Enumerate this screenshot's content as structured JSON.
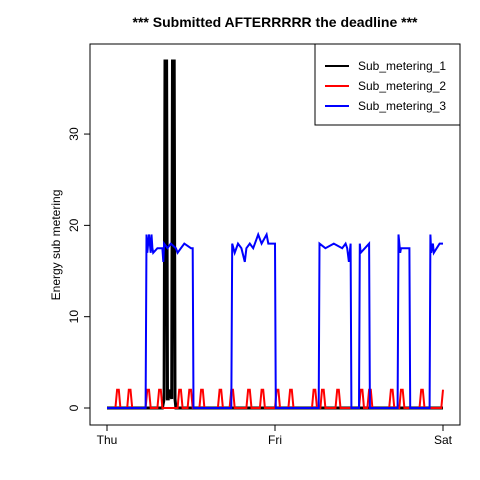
{
  "chart_data": {
    "type": "line",
    "title": "*** Submitted AFTERRRRR the deadline ***",
    "xlabel": "",
    "ylabel": "Energy sub metering",
    "x_range": [
      0,
      2
    ],
    "ylim": [
      -1.5,
      39.8
    ],
    "x_ticks": [
      {
        "value": 0,
        "label": "Thu"
      },
      {
        "value": 1,
        "label": "Fri"
      },
      {
        "value": 2,
        "label": "Sat"
      }
    ],
    "y_ticks": [
      0,
      10,
      20,
      30
    ],
    "legend": {
      "position": "top-right"
    },
    "series": [
      {
        "name": "Sub_metering_1",
        "color": "#000000",
        "x": [
          0,
          0.33,
          0.34,
          0.345,
          0.35,
          0.355,
          0.36,
          0.365,
          0.37,
          0.385,
          0.39,
          0.395,
          0.4,
          0.405,
          0.41,
          0.42,
          2
        ],
        "y": [
          0,
          0,
          1,
          38,
          38,
          38,
          1,
          1,
          2,
          1,
          38,
          38,
          38,
          1,
          0,
          0,
          0
        ]
      },
      {
        "name": "Sub_metering_2",
        "color": "#ff0000",
        "x": [
          0,
          0.05,
          0.06,
          0.07,
          0.08,
          0.12,
          0.13,
          0.14,
          0.15,
          0.23,
          0.24,
          0.25,
          0.26,
          0.3,
          0.31,
          0.32,
          0.33,
          0.42,
          0.43,
          0.44,
          0.45,
          0.48,
          0.49,
          0.5,
          0.51,
          0.55,
          0.56,
          0.57,
          0.58,
          0.66,
          0.67,
          0.68,
          0.69,
          0.73,
          0.74,
          0.75,
          0.76,
          0.83,
          0.84,
          0.85,
          0.86,
          0.91,
          0.92,
          0.93,
          0.94,
          1.0,
          1.01,
          1.02,
          1.03,
          1.08,
          1.09,
          1.1,
          1.11,
          1.22,
          1.23,
          1.24,
          1.25,
          1.27,
          1.28,
          1.29,
          1.3,
          1.36,
          1.37,
          1.38,
          1.39,
          1.5,
          1.51,
          1.52,
          1.53,
          1.55,
          1.56,
          1.57,
          1.58,
          1.68,
          1.69,
          1.7,
          1.71,
          1.74,
          1.75,
          1.76,
          1.77,
          1.86,
          1.87,
          1.88,
          1.89,
          1.99,
          2
        ],
        "y": [
          0,
          0,
          2,
          2,
          0,
          0,
          2,
          2,
          0,
          0,
          2,
          2,
          0,
          0,
          2,
          2,
          0,
          0,
          2,
          2,
          0,
          0,
          2,
          2,
          0,
          0,
          2,
          2,
          0,
          0,
          2,
          2,
          0,
          0,
          2,
          2,
          0,
          0,
          2,
          2,
          0,
          0,
          2,
          2,
          0,
          0,
          2,
          2,
          0,
          0,
          2,
          2,
          0,
          0,
          2,
          2,
          0,
          0,
          2,
          2,
          0,
          0,
          2,
          2,
          0,
          0,
          2,
          2,
          0,
          0,
          2,
          2,
          0,
          0,
          2,
          2,
          0,
          0,
          2,
          2,
          0,
          0,
          2,
          2,
          0,
          0,
          2
        ]
      },
      {
        "name": "Sub_metering_3",
        "color": "#0000ff",
        "x": [
          0,
          0.23,
          0.235,
          0.24,
          0.25,
          0.26,
          0.265,
          0.27,
          0.275,
          0.3,
          0.33,
          0.335,
          0.34,
          0.36,
          0.38,
          0.41,
          0.42,
          0.44,
          0.46,
          0.5,
          0.51,
          0.515,
          0.74,
          0.745,
          0.76,
          0.78,
          0.8,
          0.82,
          0.83,
          0.85,
          0.87,
          0.9,
          0.92,
          0.95,
          0.96,
          1.0,
          1.005,
          1.26,
          1.265,
          1.3,
          1.35,
          1.4,
          1.42,
          1.43,
          1.44,
          1.45,
          1.455,
          1.5,
          1.505,
          1.51,
          1.56,
          1.565,
          1.73,
          1.735,
          1.745,
          1.75,
          1.8,
          1.805,
          1.92,
          1.925,
          1.93,
          1.94,
          1.945,
          1.98,
          2
        ],
        "y": [
          0,
          0,
          19,
          17,
          19,
          17,
          19,
          17.5,
          17,
          17.5,
          17.5,
          16,
          18,
          17.5,
          18,
          17.5,
          17,
          17.5,
          18,
          17.5,
          17.5,
          0,
          0,
          18,
          17,
          18,
          17.5,
          16,
          17.5,
          18,
          17.5,
          19,
          18,
          19,
          18,
          18,
          0,
          0,
          18,
          17.5,
          18,
          17.5,
          18,
          17.5,
          16,
          18,
          0,
          0,
          18,
          17,
          18,
          0,
          0,
          19,
          17,
          17.5,
          17.5,
          0,
          0,
          19,
          17,
          18,
          17,
          18,
          18
        ]
      }
    ]
  }
}
